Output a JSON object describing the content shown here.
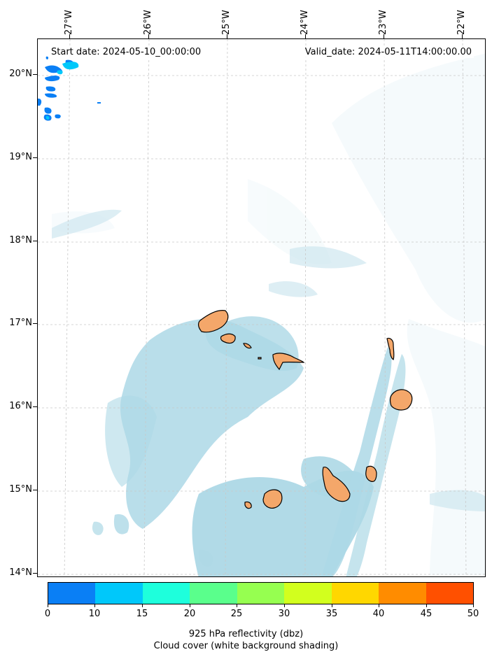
{
  "info": {
    "start": "Start date: 2024-05-10_00:00:00",
    "valid": "Valid_date: 2024-05-11T14:00:00.00"
  },
  "lon_labels": [
    "27°W",
    "26°W",
    "25°W",
    "24°W",
    "23°W",
    "22°W"
  ],
  "lat_labels": [
    "20°N",
    "19°N",
    "18°N",
    "17°N",
    "16°N",
    "15°N",
    "14°N"
  ],
  "colorbar": {
    "ticks": [
      "0",
      "10",
      "15",
      "20",
      "25",
      "30",
      "35",
      "40",
      "45",
      "50"
    ],
    "colors": [
      "#0a7ff5",
      "#00c8fa",
      "#1effdc",
      "#5aff8c",
      "#96ff50",
      "#d2ff1e",
      "#ffd700",
      "#ff8c00",
      "#ff5000"
    ]
  },
  "caption": {
    "line1": "925 hPa reflectivity (dbz)",
    "line2": "Cloud cover (white background shading)"
  },
  "colors": {
    "cloud": "#add8e6",
    "land": "#f4a76a",
    "coast": "#000000"
  }
}
